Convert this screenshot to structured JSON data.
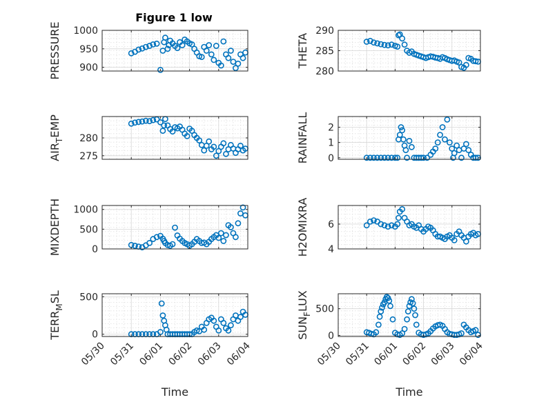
{
  "figure_title": "Figure 1 low",
  "colors": {
    "marker": "#0072BD",
    "axis": "#262626",
    "grid": "#dfdfdf",
    "background": "#ffffff"
  },
  "chart_data": [
    {
      "type": "scatter",
      "title": "Figure 1 low",
      "ylabel": "PRESSURE",
      "xlabel": "",
      "ylim": [
        890,
        1000
      ],
      "yticks": [
        900,
        950,
        1000
      ],
      "yticklabels": [
        "900",
        "950",
        "1000"
      ],
      "x": [
        "05/31 00:00",
        "05/31 03:00",
        "05/31 06:00",
        "05/31 09:00",
        "05/31 12:00",
        "05/31 15:00",
        "05/31 18:00",
        "05/31 21:00",
        "06/01 00:00",
        "06/01 02:00",
        "06/01 03:00",
        "06/01 04:00",
        "06/01 06:00",
        "06/01 07:00",
        "06/01 08:00",
        "06/01 10:00",
        "06/01 12:00",
        "06/01 14:00",
        "06/01 16:00",
        "06/01 18:00",
        "06/01 20:00",
        "06/01 22:00",
        "06/02 00:00",
        "06/02 02:00",
        "06/02 04:00",
        "06/02 06:00",
        "06/02 08:00",
        "06/02 10:00",
        "06/02 12:00",
        "06/02 14:00",
        "06/02 16:00",
        "06/02 18:00",
        "06/02 20:00",
        "06/02 22:00",
        "06/03 00:00",
        "06/03 02:00",
        "06/03 04:00",
        "06/03 06:00",
        "06/03 08:00",
        "06/03 10:00",
        "06/03 12:00",
        "06/03 14:00",
        "06/03 16:00",
        "06/03 18:00",
        "06/03 20:00",
        "06/03 22:00"
      ],
      "y": [
        938,
        942,
        948,
        951,
        955,
        958,
        962,
        964,
        893,
        945,
        968,
        980,
        950,
        960,
        972,
        965,
        958,
        952,
        968,
        960,
        975,
        970,
        965,
        962,
        950,
        940,
        930,
        928,
        955,
        945,
        960,
        935,
        920,
        958,
        912,
        905,
        970,
        935,
        925,
        945,
        915,
        898,
        910,
        935,
        925,
        940
      ]
    },
    {
      "type": "scatter",
      "ylabel": "THETA",
      "xlabel": "",
      "ylim": [
        280,
        290
      ],
      "yticks": [
        280,
        285,
        290
      ],
      "yticklabels": [
        "280",
        "285",
        "290"
      ],
      "x": [
        "05/31 00:00",
        "05/31 03:00",
        "05/31 06:00",
        "05/31 09:00",
        "05/31 12:00",
        "05/31 15:00",
        "05/31 18:00",
        "05/31 21:00",
        "06/01 00:00",
        "06/01 02:00",
        "06/01 03:00",
        "06/01 04:00",
        "06/01 06:00",
        "06/01 08:00",
        "06/01 10:00",
        "06/01 12:00",
        "06/01 14:00",
        "06/01 16:00",
        "06/01 18:00",
        "06/01 20:00",
        "06/01 22:00",
        "06/02 00:00",
        "06/02 02:00",
        "06/02 04:00",
        "06/02 06:00",
        "06/02 08:00",
        "06/02 10:00",
        "06/02 12:00",
        "06/02 14:00",
        "06/02 16:00",
        "06/02 18:00",
        "06/02 20:00",
        "06/02 22:00",
        "06/03 00:00",
        "06/03 02:00",
        "06/03 04:00",
        "06/03 06:00",
        "06/03 08:00",
        "06/03 10:00",
        "06/03 12:00",
        "06/03 14:00",
        "06/03 16:00",
        "06/03 18:00",
        "06/03 20:00",
        "06/03 22:00"
      ],
      "y": [
        287.2,
        287.4,
        287.0,
        286.8,
        286.6,
        286.4,
        286.3,
        286.5,
        286.2,
        286.0,
        288.8,
        289.0,
        288.0,
        286.5,
        285.0,
        284.5,
        284.8,
        284.2,
        284.0,
        283.8,
        283.6,
        283.4,
        283.2,
        283.4,
        283.6,
        283.5,
        283.3,
        283.2,
        283.0,
        283.4,
        283.2,
        282.9,
        282.7,
        282.5,
        282.6,
        282.3,
        282.1,
        281.0,
        280.8,
        281.5,
        283.2,
        283.0,
        282.5,
        282.4,
        282.3
      ]
    },
    {
      "type": "scatter",
      "ylabel": "AIR_TEMP",
      "xlabel": "",
      "ylim": [
        274,
        286
      ],
      "yticks": [
        275,
        280
      ],
      "yticklabels": [
        "275",
        "280"
      ],
      "x": [
        "05/31 00:00",
        "05/31 03:00",
        "05/31 06:00",
        "05/31 09:00",
        "05/31 12:00",
        "05/31 15:00",
        "05/31 18:00",
        "05/31 21:00",
        "06/01 00:00",
        "06/01 02:00",
        "06/01 03:00",
        "06/01 04:00",
        "06/01 06:00",
        "06/01 08:00",
        "06/01 10:00",
        "06/01 12:00",
        "06/01 14:00",
        "06/01 16:00",
        "06/01 18:00",
        "06/01 20:00",
        "06/01 22:00",
        "06/02 00:00",
        "06/02 02:00",
        "06/02 04:00",
        "06/02 06:00",
        "06/02 08:00",
        "06/02 10:00",
        "06/02 12:00",
        "06/02 14:00",
        "06/02 16:00",
        "06/02 18:00",
        "06/02 20:00",
        "06/02 22:00",
        "06/03 00:00",
        "06/03 02:00",
        "06/03 04:00",
        "06/03 06:00",
        "06/03 08:00",
        "06/03 10:00",
        "06/03 12:00",
        "06/03 14:00",
        "06/03 16:00",
        "06/03 18:00",
        "06/03 20:00",
        "06/03 22:00"
      ],
      "y": [
        284.0,
        284.3,
        284.5,
        284.6,
        284.8,
        284.7,
        285.0,
        285.2,
        284.4,
        282.0,
        283.5,
        285.3,
        283.5,
        282.5,
        281.8,
        283.0,
        282.7,
        283.2,
        282.3,
        281.2,
        280.5,
        282.6,
        282.0,
        280.8,
        280.0,
        279.3,
        278.0,
        276.5,
        277.8,
        279.0,
        276.8,
        277.5,
        275.0,
        276.3,
        277.5,
        278.5,
        275.5,
        276.8,
        278.0,
        277.0,
        275.8,
        276.8,
        277.8,
        276.5,
        277.0
      ]
    },
    {
      "type": "scatter",
      "ylabel": "RAINFALL",
      "xlabel": "",
      "ylim": [
        -0.1,
        2.7
      ],
      "yticks": [
        0,
        1,
        2
      ],
      "yticklabels": [
        "0",
        "1",
        "2"
      ],
      "x": [
        "05/31 00:00",
        "05/31 03:00",
        "05/31 06:00",
        "05/31 09:00",
        "05/31 12:00",
        "05/31 15:00",
        "05/31 18:00",
        "05/31 21:00",
        "06/01 00:00",
        "06/01 02:00",
        "06/01 03:00",
        "06/01 04:00",
        "06/01 05:00",
        "06/01 06:00",
        "06/01 07:00",
        "06/01 08:00",
        "06/01 09:00",
        "06/01 10:00",
        "06/01 12:00",
        "06/01 14:00",
        "06/01 16:00",
        "06/01 18:00",
        "06/01 20:00",
        "06/01 22:00",
        "06/02 00:00",
        "06/02 03:00",
        "06/02 06:00",
        "06/02 08:00",
        "06/02 10:00",
        "06/02 12:00",
        "06/02 14:00",
        "06/02 16:00",
        "06/02 18:00",
        "06/02 20:00",
        "06/02 22:00",
        "06/03 00:00",
        "06/03 01:00",
        "06/03 02:00",
        "06/03 04:00",
        "06/03 06:00",
        "06/03 08:00",
        "06/03 10:00",
        "06/03 12:00",
        "06/03 14:00",
        "06/03 16:00",
        "06/03 18:00",
        "06/03 20:00",
        "06/03 22:00"
      ],
      "y": [
        0,
        0,
        0,
        0,
        0,
        0,
        0,
        0,
        0,
        0,
        1.2,
        1.5,
        2.0,
        1.8,
        1.2,
        0.8,
        0.5,
        0,
        1.1,
        0.7,
        0,
        0,
        0,
        0,
        0,
        0,
        0.2,
        0.4,
        0.6,
        1.0,
        1.5,
        2.0,
        1.2,
        2.5,
        1.0,
        0.6,
        0,
        0.3,
        0.8,
        0.5,
        0,
        0.6,
        0.9,
        0.5,
        0.2,
        0,
        0,
        0
      ]
    },
    {
      "type": "scatter",
      "ylabel": "MIXDEPTH",
      "xlabel": "",
      "ylim": [
        0,
        1100
      ],
      "yticks": [
        0,
        500,
        1000
      ],
      "yticklabels": [
        "0",
        "500",
        "1000"
      ],
      "x": [
        "05/31 00:00",
        "05/31 03:00",
        "05/31 06:00",
        "05/31 09:00",
        "05/31 12:00",
        "05/31 15:00",
        "05/31 18:00",
        "05/31 21:00",
        "06/01 00:00",
        "06/01 02:00",
        "06/01 03:00",
        "06/01 04:00",
        "06/01 06:00",
        "06/01 08:00",
        "06/01 10:00",
        "06/01 12:00",
        "06/01 14:00",
        "06/01 16:00",
        "06/01 18:00",
        "06/01 20:00",
        "06/01 22:00",
        "06/02 00:00",
        "06/02 02:00",
        "06/02 04:00",
        "06/02 06:00",
        "06/02 08:00",
        "06/02 10:00",
        "06/02 12:00",
        "06/02 14:00",
        "06/02 16:00",
        "06/02 18:00",
        "06/02 20:00",
        "06/02 22:00",
        "06/03 00:00",
        "06/03 02:00",
        "06/03 04:00",
        "06/03 06:00",
        "06/03 08:00",
        "06/03 10:00",
        "06/03 12:00",
        "06/03 14:00",
        "06/03 16:00",
        "06/03 18:00",
        "06/03 20:00",
        "06/03 22:00"
      ],
      "y": [
        100,
        80,
        60,
        40,
        90,
        150,
        250,
        300,
        330,
        260,
        200,
        150,
        100,
        80,
        120,
        540,
        340,
        260,
        200,
        150,
        120,
        80,
        120,
        180,
        250,
        200,
        150,
        160,
        120,
        180,
        250,
        300,
        350,
        280,
        400,
        200,
        350,
        600,
        550,
        400,
        300,
        650,
        900,
        1050,
        850
      ]
    },
    {
      "type": "scatter",
      "ylabel": "H2OMIXRA",
      "xlabel": "",
      "ylim": [
        4,
        7.5
      ],
      "yticks": [
        4,
        6
      ],
      "yticklabels": [
        "4",
        "6"
      ],
      "x": [
        "05/31 00:00",
        "05/31 03:00",
        "05/31 06:00",
        "05/31 09:00",
        "05/31 12:00",
        "05/31 15:00",
        "05/31 18:00",
        "05/31 21:00",
        "06/01 00:00",
        "06/01 02:00",
        "06/01 03:00",
        "06/01 04:00",
        "06/01 06:00",
        "06/01 08:00",
        "06/01 10:00",
        "06/01 12:00",
        "06/01 14:00",
        "06/01 16:00",
        "06/01 18:00",
        "06/01 20:00",
        "06/01 22:00",
        "06/02 00:00",
        "06/02 02:00",
        "06/02 04:00",
        "06/02 06:00",
        "06/02 08:00",
        "06/02 10:00",
        "06/02 12:00",
        "06/02 14:00",
        "06/02 16:00",
        "06/02 18:00",
        "06/02 20:00",
        "06/02 22:00",
        "06/03 00:00",
        "06/03 02:00",
        "06/03 04:00",
        "06/03 06:00",
        "06/03 08:00",
        "06/03 10:00",
        "06/03 12:00",
        "06/03 14:00",
        "06/03 16:00",
        "06/03 18:00",
        "06/03 20:00",
        "06/03 22:00"
      ],
      "y": [
        5.9,
        6.2,
        6.3,
        6.2,
        6.0,
        5.9,
        5.8,
        5.9,
        5.8,
        6.0,
        6.5,
        7.0,
        7.2,
        6.5,
        6.2,
        5.9,
        6.0,
        5.8,
        5.7,
        5.9,
        5.6,
        5.4,
        5.6,
        5.8,
        5.7,
        5.5,
        5.2,
        5.0,
        5.0,
        4.9,
        4.8,
        5.0,
        5.1,
        4.9,
        4.7,
        5.2,
        5.4,
        5.1,
        4.9,
        4.6,
        5.0,
        5.2,
        5.3,
        5.1,
        5.2
      ]
    },
    {
      "type": "scatter",
      "ylabel": "TERR_MSL",
      "xlabel": "Time",
      "ylim": [
        -30,
        540
      ],
      "yticks": [
        0,
        500
      ],
      "yticklabels": [
        "0",
        "500"
      ],
      "xticks": [
        "05/30",
        "05/31",
        "06/01",
        "06/02",
        "06/03",
        "06/04"
      ],
      "x": [
        "05/31 00:00",
        "05/31 03:00",
        "05/31 06:00",
        "05/31 09:00",
        "05/31 12:00",
        "05/31 15:00",
        "05/31 18:00",
        "05/31 21:00",
        "06/01 00:00",
        "06/01 01:00",
        "06/01 02:00",
        "06/01 03:00",
        "06/01 04:00",
        "06/01 05:00",
        "06/01 06:00",
        "06/01 08:00",
        "06/01 10:00",
        "06/01 12:00",
        "06/01 14:00",
        "06/01 16:00",
        "06/01 18:00",
        "06/01 20:00",
        "06/01 22:00",
        "06/02 00:00",
        "06/02 02:00",
        "06/02 04:00",
        "06/02 06:00",
        "06/02 08:00",
        "06/02 10:00",
        "06/02 12:00",
        "06/02 14:00",
        "06/02 16:00",
        "06/02 18:00",
        "06/02 20:00",
        "06/02 22:00",
        "06/03 00:00",
        "06/03 02:00",
        "06/03 04:00",
        "06/03 06:00",
        "06/03 08:00",
        "06/03 10:00",
        "06/03 12:00",
        "06/03 14:00",
        "06/03 16:00",
        "06/03 18:00",
        "06/03 20:00",
        "06/03 22:00"
      ],
      "y": [
        0,
        0,
        0,
        0,
        0,
        0,
        0,
        0,
        30,
        410,
        250,
        180,
        120,
        60,
        0,
        0,
        0,
        0,
        0,
        0,
        0,
        0,
        0,
        0,
        0,
        30,
        50,
        40,
        100,
        60,
        150,
        200,
        220,
        180,
        100,
        50,
        200,
        150,
        80,
        50,
        120,
        200,
        250,
        180,
        230,
        300,
        260
      ]
    },
    {
      "type": "scatter",
      "ylabel": "SUN_FLUX",
      "xlabel": "Time",
      "ylim": [
        -20,
        780
      ],
      "yticks": [
        0,
        500
      ],
      "yticklabels": [
        "0",
        "500"
      ],
      "xticks": [
        "05/30",
        "05/31",
        "06/01",
        "06/02",
        "06/03",
        "06/04"
      ],
      "x": [
        "05/31 00:00",
        "05/31 02:00",
        "05/31 04:00",
        "05/31 06:00",
        "05/31 08:00",
        "05/31 10:00",
        "05/31 11:00",
        "05/31 12:00",
        "05/31 13:00",
        "05/31 14:00",
        "05/31 15:00",
        "05/31 16:00",
        "05/31 17:00",
        "05/31 18:00",
        "05/31 19:00",
        "05/31 20:00",
        "05/31 22:00",
        "06/01 00:00",
        "06/01 02:00",
        "06/01 04:00",
        "06/01 06:00",
        "06/01 08:00",
        "06/01 10:00",
        "06/01 11:00",
        "06/01 12:00",
        "06/01 13:00",
        "06/01 14:00",
        "06/01 15:00",
        "06/01 16:00",
        "06/01 17:00",
        "06/01 18:00",
        "06/01 20:00",
        "06/01 22:00",
        "06/02 00:00",
        "06/02 02:00",
        "06/02 04:00",
        "06/02 06:00",
        "06/02 08:00",
        "06/02 10:00",
        "06/02 12:00",
        "06/02 14:00",
        "06/02 16:00",
        "06/02 18:00",
        "06/02 20:00",
        "06/02 22:00",
        "06/03 00:00",
        "06/03 02:00",
        "06/03 04:00",
        "06/03 06:00",
        "06/03 08:00",
        "06/03 10:00",
        "06/03 12:00",
        "06/03 14:00",
        "06/03 16:00",
        "06/03 18:00",
        "06/03 20:00",
        "06/03 22:00"
      ],
      "y": [
        60,
        50,
        30,
        20,
        60,
        200,
        350,
        450,
        520,
        580,
        620,
        680,
        720,
        700,
        650,
        550,
        300,
        50,
        20,
        10,
        40,
        120,
        300,
        450,
        550,
        620,
        680,
        600,
        500,
        380,
        200,
        50,
        20,
        10,
        20,
        40,
        80,
        130,
        170,
        190,
        200,
        180,
        120,
        60,
        30,
        20,
        10,
        10,
        20,
        40,
        200,
        150,
        100,
        60,
        80,
        100,
        10
      ]
    }
  ]
}
